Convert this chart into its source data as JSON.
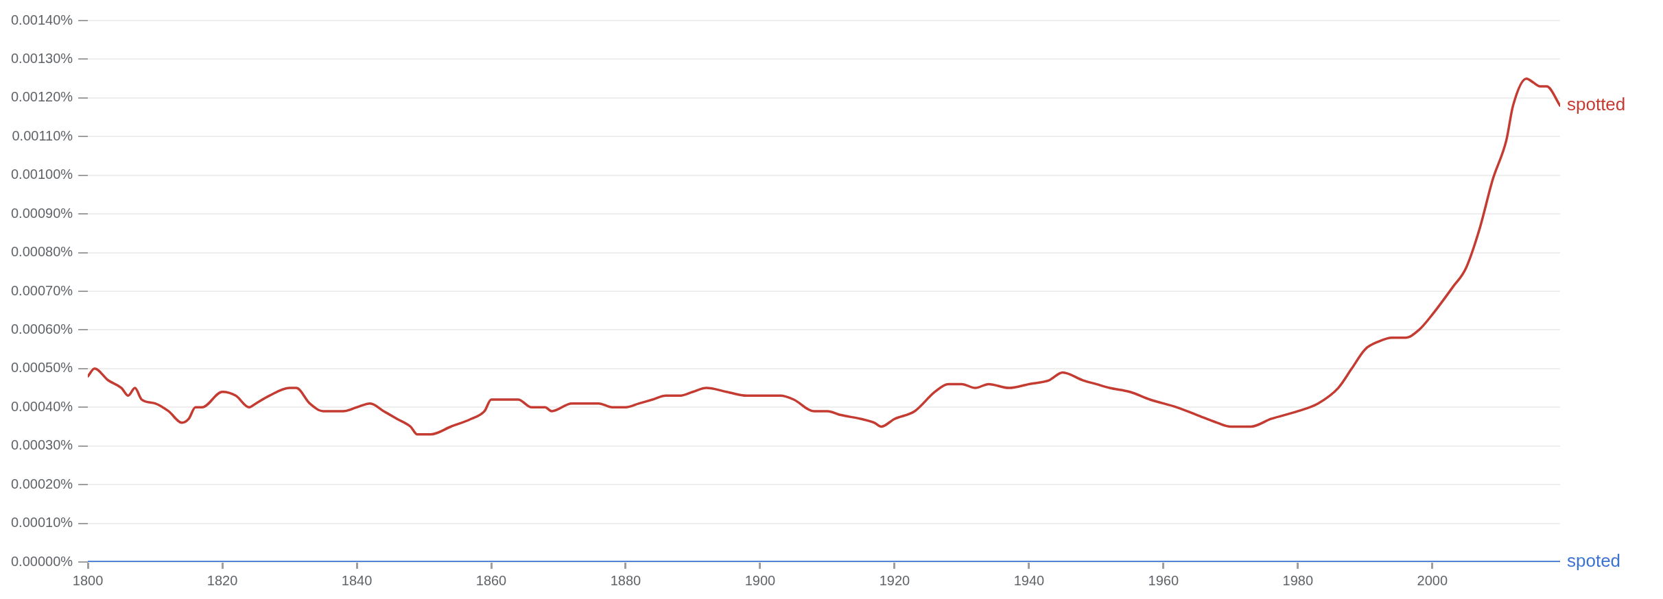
{
  "chart_data": {
    "type": "line",
    "xlim": [
      1800,
      2019
    ],
    "xticks": [
      1800,
      1820,
      1840,
      1860,
      1880,
      1900,
      1920,
      1940,
      1960,
      1980,
      2000
    ],
    "ylim": [
      0,
      0.0014
    ],
    "yticks": [
      {
        "value": 0,
        "label": "0.00000%"
      },
      {
        "value": 0.0001,
        "label": "0.00010%"
      },
      {
        "value": 0.0002,
        "label": "0.00020%"
      },
      {
        "value": 0.0003,
        "label": "0.00030%"
      },
      {
        "value": 0.0004,
        "label": "0.00040%"
      },
      {
        "value": 0.0005,
        "label": "0.00050%"
      },
      {
        "value": 0.0006,
        "label": "0.00060%"
      },
      {
        "value": 0.0007,
        "label": "0.00070%"
      },
      {
        "value": 0.0008,
        "label": "0.00080%"
      },
      {
        "value": 0.0009,
        "label": "0.00090%"
      },
      {
        "value": 0.001,
        "label": "0.00100%"
      },
      {
        "value": 0.0011,
        "label": "0.00110%"
      },
      {
        "value": 0.0012,
        "label": "0.00120%"
      },
      {
        "value": 0.0013,
        "label": "0.00130%"
      },
      {
        "value": 0.0014,
        "label": "0.00140%"
      }
    ],
    "grid": "y",
    "legend": false,
    "marker": "none",
    "line_style": "solid",
    "series": [
      {
        "name": "spotted",
        "color": "#c43b32",
        "x": [
          1800,
          1801,
          1803,
          1805,
          1806,
          1807,
          1808,
          1810,
          1812,
          1814,
          1815,
          1816,
          1817,
          1820,
          1822,
          1824,
          1825,
          1827,
          1830,
          1831,
          1833,
          1835,
          1838,
          1840,
          1842,
          1844,
          1846,
          1848,
          1849,
          1851,
          1854,
          1857,
          1859,
          1860,
          1862,
          1864,
          1866,
          1868,
          1869,
          1872,
          1874,
          1876,
          1878,
          1880,
          1882,
          1884,
          1886,
          1888,
          1890,
          1892,
          1895,
          1898,
          1900,
          1903,
          1905,
          1908,
          1910,
          1912,
          1915,
          1917,
          1918,
          1920,
          1923,
          1926,
          1928,
          1930,
          1932,
          1934,
          1937,
          1940,
          1943,
          1945,
          1948,
          1950,
          1952,
          1955,
          1958,
          1962,
          1965,
          1968,
          1970,
          1973,
          1976,
          1980,
          1983,
          1986,
          1988,
          1990,
          1992,
          1994,
          1996,
          1998,
          2000,
          2003,
          2005,
          2007,
          2009,
          2011,
          2012,
          2014,
          2015,
          2016,
          2017,
          2019
        ],
        "values": [
          0.00048,
          0.0005,
          0.00047,
          0.00045,
          0.00043,
          0.00045,
          0.00042,
          0.00041,
          0.00039,
          0.00036,
          0.00037,
          0.0004,
          0.0004,
          0.00044,
          0.00043,
          0.0004,
          0.00041,
          0.00043,
          0.00045,
          0.00045,
          0.00041,
          0.00039,
          0.00039,
          0.0004,
          0.00041,
          0.00039,
          0.00037,
          0.00035,
          0.00033,
          0.00033,
          0.00035,
          0.00037,
          0.00039,
          0.00042,
          0.00042,
          0.00042,
          0.0004,
          0.0004,
          0.00039,
          0.00041,
          0.00041,
          0.00041,
          0.0004,
          0.0004,
          0.00041,
          0.00042,
          0.00043,
          0.00043,
          0.00044,
          0.00045,
          0.00044,
          0.00043,
          0.00043,
          0.00043,
          0.00042,
          0.00039,
          0.00039,
          0.00038,
          0.00037,
          0.00036,
          0.00035,
          0.00037,
          0.00039,
          0.00044,
          0.00046,
          0.00046,
          0.00045,
          0.00046,
          0.00045,
          0.00046,
          0.00047,
          0.00049,
          0.00047,
          0.00046,
          0.00045,
          0.00044,
          0.00042,
          0.0004,
          0.00038,
          0.00036,
          0.00035,
          0.00035,
          0.00037,
          0.00039,
          0.00041,
          0.00045,
          0.0005,
          0.00055,
          0.00057,
          0.00058,
          0.00058,
          0.0006,
          0.00064,
          0.00071,
          0.00076,
          0.00086,
          0.00099,
          0.00109,
          0.00118,
          0.00125,
          0.00124,
          0.00123,
          0.00123,
          0.00118
        ]
      },
      {
        "name": "spoted",
        "color": "#3a74d0",
        "x": [
          1800,
          2019
        ],
        "values": [
          0,
          0
        ]
      }
    ]
  }
}
